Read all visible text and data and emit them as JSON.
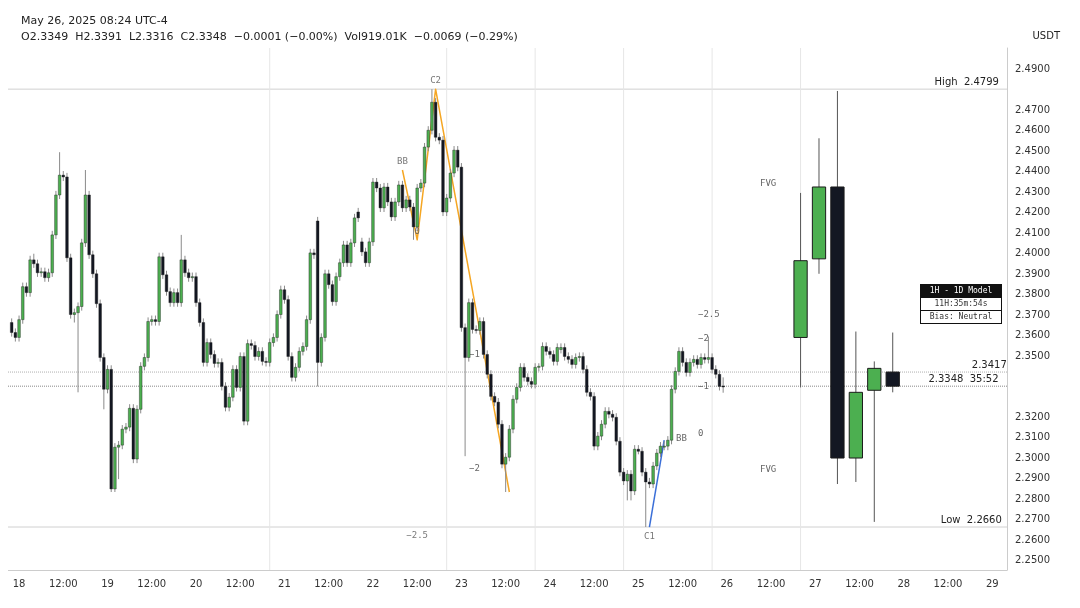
{
  "chart_data": {
    "type": "candlestick",
    "title": "May 26, 2025 08:24 UTC-4",
    "subtitle": "O2.3349  H2.3391  L2.3316  C2.3348  −0.0001 (−0.00%)  Vol919.01K  −0.0069 (−0.29%)",
    "ylabel": "USDT",
    "xlim": [
      "2025-05-17T21:00",
      "2025-05-29T04:00"
    ],
    "xticks": [
      {
        "value": "2025-05-18T00:00",
        "label": "18"
      },
      {
        "value": "2025-05-18T12:00",
        "label": "12:00"
      },
      {
        "value": "2025-05-19T00:00",
        "label": "19"
      },
      {
        "value": "2025-05-19T12:00",
        "label": "12:00"
      },
      {
        "value": "2025-05-20T00:00",
        "label": "20"
      },
      {
        "value": "2025-05-20T12:00",
        "label": "12:00"
      },
      {
        "value": "2025-05-21T00:00",
        "label": "21"
      },
      {
        "value": "2025-05-21T12:00",
        "label": "12:00"
      },
      {
        "value": "2025-05-22T00:00",
        "label": "22"
      },
      {
        "value": "2025-05-22T12:00",
        "label": "12:00"
      },
      {
        "value": "2025-05-23T00:00",
        "label": "23"
      },
      {
        "value": "2025-05-23T12:00",
        "label": "12:00"
      },
      {
        "value": "2025-05-24T00:00",
        "label": "24"
      },
      {
        "value": "2025-05-24T12:00",
        "label": "12:00"
      },
      {
        "value": "2025-05-25T00:00",
        "label": "25"
      },
      {
        "value": "2025-05-25T12:00",
        "label": "12:00"
      },
      {
        "value": "2025-05-26T00:00",
        "label": "26"
      },
      {
        "value": "2025-05-26T12:00",
        "label": "12:00"
      },
      {
        "value": "2025-05-27T00:00",
        "label": "27"
      },
      {
        "value": "2025-05-27T12:00",
        "label": "12:00"
      },
      {
        "value": "2025-05-28T00:00",
        "label": "28"
      },
      {
        "value": "2025-05-28T12:00",
        "label": "12:00"
      },
      {
        "value": "2025-05-29T00:00",
        "label": "29"
      }
    ],
    "ylim": [
      2.245,
      2.5
    ],
    "yticks": [
      {
        "value": 2.25,
        "label": "2.2500"
      },
      {
        "value": 2.26,
        "label": "2.2600"
      },
      {
        "value": 2.27,
        "label": "2.2700"
      },
      {
        "value": 2.28,
        "label": "2.2800"
      },
      {
        "value": 2.29,
        "label": "2.2900"
      },
      {
        "value": 2.3,
        "label": "2.3000"
      },
      {
        "value": 2.31,
        "label": "2.3100"
      },
      {
        "value": 2.32,
        "label": "2.3200"
      },
      {
        "value": 2.35,
        "label": "2.3500"
      },
      {
        "value": 2.36,
        "label": "2.3600"
      },
      {
        "value": 2.37,
        "label": "2.3700"
      },
      {
        "value": 2.38,
        "label": "2.3800"
      },
      {
        "value": 2.39,
        "label": "2.3900"
      },
      {
        "value": 2.4,
        "label": "2.4000"
      },
      {
        "value": 2.41,
        "label": "2.4100"
      },
      {
        "value": 2.42,
        "label": "2.4200"
      },
      {
        "value": 2.43,
        "label": "2.4300"
      },
      {
        "value": 2.44,
        "label": "2.4400"
      },
      {
        "value": 2.45,
        "label": "2.4500"
      },
      {
        "value": 2.46,
        "label": "2.4600"
      },
      {
        "value": 2.47,
        "label": "2.4700"
      },
      {
        "value": 2.49,
        "label": "2.4900"
      }
    ],
    "grid": false,
    "marker": "none",
    "series": [
      {
        "x": [
          "2025-05-17T22:00",
          "2025-05-17T23:00",
          "2025-05-18T00:00",
          "2025-05-18T01:00",
          "2025-05-18T02:00",
          "2025-05-18T03:00",
          "2025-05-18T04:00",
          "2025-05-18T05:00",
          "2025-05-18T06:00",
          "2025-05-18T07:00",
          "2025-05-18T08:00",
          "2025-05-18T09:00",
          "2025-05-18T10:00",
          "2025-05-18T11:00",
          "2025-05-18T12:00",
          "2025-05-18T13:00",
          "2025-05-18T14:00",
          "2025-05-18T15:00",
          "2025-05-18T16:00",
          "2025-05-18T17:00",
          "2025-05-18T18:00",
          "2025-05-18T19:00",
          "2025-05-18T20:00",
          "2025-05-18T21:00",
          "2025-05-18T22:00",
          "2025-05-18T23:00",
          "2025-05-19T00:00",
          "2025-05-19T01:00",
          "2025-05-19T02:00",
          "2025-05-19T03:00",
          "2025-05-19T04:00",
          "2025-05-19T05:00",
          "2025-05-19T06:00",
          "2025-05-19T07:00",
          "2025-05-19T08:00",
          "2025-05-19T09:00",
          "2025-05-19T10:00",
          "2025-05-19T11:00",
          "2025-05-19T12:00",
          "2025-05-19T13:00",
          "2025-05-19T14:00",
          "2025-05-19T15:00",
          "2025-05-19T16:00",
          "2025-05-19T17:00",
          "2025-05-19T18:00",
          "2025-05-19T19:00",
          "2025-05-19T20:00",
          "2025-05-19T21:00",
          "2025-05-19T22:00",
          "2025-05-19T23:00",
          "2025-05-20T00:00",
          "2025-05-20T01:00",
          "2025-05-20T02:00",
          "2025-05-20T03:00",
          "2025-05-20T04:00",
          "2025-05-20T05:00",
          "2025-05-20T06:00",
          "2025-05-20T07:00",
          "2025-05-20T08:00",
          "2025-05-20T09:00",
          "2025-05-20T10:00",
          "2025-05-20T11:00",
          "2025-05-20T12:00",
          "2025-05-20T13:00",
          "2025-05-20T14:00",
          "2025-05-20T15:00",
          "2025-05-20T16:00",
          "2025-05-20T17:00",
          "2025-05-20T18:00",
          "2025-05-20T19:00",
          "2025-05-20T20:00",
          "2025-05-20T21:00",
          "2025-05-20T22:00",
          "2025-05-20T23:00",
          "2025-05-21T00:00",
          "2025-05-21T01:00",
          "2025-05-21T02:00",
          "2025-05-21T03:00",
          "2025-05-21T04:00",
          "2025-05-21T05:00",
          "2025-05-21T06:00",
          "2025-05-21T07:00",
          "2025-05-21T08:00",
          "2025-05-21T09:00",
          "2025-05-21T10:00",
          "2025-05-21T11:00",
          "2025-05-21T12:00",
          "2025-05-21T13:00",
          "2025-05-21T14:00",
          "2025-05-21T15:00",
          "2025-05-21T16:00",
          "2025-05-21T17:00",
          "2025-05-21T18:00",
          "2025-05-21T19:00",
          "2025-05-21T20:00",
          "2025-05-21T21:00",
          "2025-05-21T22:00",
          "2025-05-21T23:00",
          "2025-05-22T00:00",
          "2025-05-22T01:00",
          "2025-05-22T02:00",
          "2025-05-22T03:00",
          "2025-05-22T04:00",
          "2025-05-22T05:00",
          "2025-05-22T06:00",
          "2025-05-22T07:00",
          "2025-05-22T08:00",
          "2025-05-22T09:00",
          "2025-05-22T10:00",
          "2025-05-22T11:00",
          "2025-05-22T12:00",
          "2025-05-22T13:00",
          "2025-05-22T14:00",
          "2025-05-22T15:00",
          "2025-05-22T16:00",
          "2025-05-22T17:00",
          "2025-05-22T18:00",
          "2025-05-22T19:00",
          "2025-05-22T20:00",
          "2025-05-22T21:00",
          "2025-05-22T22:00",
          "2025-05-22T23:00",
          "2025-05-23T00:00",
          "2025-05-23T01:00",
          "2025-05-23T02:00",
          "2025-05-23T03:00",
          "2025-05-23T04:00",
          "2025-05-23T05:00",
          "2025-05-23T06:00",
          "2025-05-23T07:00",
          "2025-05-23T08:00",
          "2025-05-23T09:00",
          "2025-05-23T10:00",
          "2025-05-23T11:00",
          "2025-05-23T12:00",
          "2025-05-23T13:00",
          "2025-05-23T14:00",
          "2025-05-23T15:00",
          "2025-05-23T16:00",
          "2025-05-23T17:00",
          "2025-05-23T18:00",
          "2025-05-23T19:00",
          "2025-05-23T20:00",
          "2025-05-23T21:00",
          "2025-05-23T22:00",
          "2025-05-23T23:00",
          "2025-05-24T00:00",
          "2025-05-24T01:00",
          "2025-05-24T02:00",
          "2025-05-24T03:00",
          "2025-05-24T04:00",
          "2025-05-24T05:00",
          "2025-05-24T06:00",
          "2025-05-24T07:00",
          "2025-05-24T08:00",
          "2025-05-24T09:00",
          "2025-05-24T10:00",
          "2025-05-24T11:00",
          "2025-05-24T12:00",
          "2025-05-24T13:00",
          "2025-05-24T14:00",
          "2025-05-24T15:00",
          "2025-05-24T16:00",
          "2025-05-24T17:00",
          "2025-05-24T18:00",
          "2025-05-24T19:00",
          "2025-05-24T20:00",
          "2025-05-24T21:00",
          "2025-05-24T22:00",
          "2025-05-24T23:00",
          "2025-05-25T00:00",
          "2025-05-25T01:00",
          "2025-05-25T02:00",
          "2025-05-25T03:00",
          "2025-05-25T04:00",
          "2025-05-25T05:00",
          "2025-05-25T06:00",
          "2025-05-25T07:00",
          "2025-05-25T08:00",
          "2025-05-25T09:00",
          "2025-05-25T10:00",
          "2025-05-25T11:00",
          "2025-05-25T12:00",
          "2025-05-25T13:00",
          "2025-05-25T14:00",
          "2025-05-25T15:00",
          "2025-05-25T16:00",
          "2025-05-25T17:00",
          "2025-05-25T18:00",
          "2025-05-25T19:00",
          "2025-05-25T20:00",
          "2025-05-25T21:00",
          "2025-05-25T22:00",
          "2025-05-25T23:00"
        ],
        "ohlc": [
          [
            2.3659,
            2.3679,
            2.359,
            2.361
          ],
          [
            2.361,
            2.363,
            2.3566,
            2.3586
          ],
          [
            2.3586,
            2.3693,
            2.3566,
            2.3673
          ],
          [
            2.3673,
            2.3854,
            2.3653,
            2.3834
          ],
          [
            2.3834,
            2.3854,
            2.3785,
            2.3805
          ],
          [
            2.3805,
            2.3985,
            2.3785,
            2.3965
          ],
          [
            2.3965,
            2.3995,
            2.3926,
            2.3946
          ],
          [
            2.3946,
            2.3966,
            2.3882,
            2.3902
          ],
          [
            2.3902,
            2.3927,
            2.3882,
            2.3907
          ],
          [
            2.3907,
            2.3927,
            2.3858,
            2.3878
          ],
          [
            2.3878,
            2.3922,
            2.3858,
            2.3902
          ],
          [
            2.3902,
            2.4107,
            2.3882,
            2.4087
          ],
          [
            2.4087,
            2.4302,
            2.4067,
            2.4282
          ],
          [
            2.4282,
            2.4491,
            2.4262,
            2.4379
          ],
          [
            2.4379,
            2.4399,
            2.435,
            2.437
          ],
          [
            2.437,
            2.439,
            2.3955,
            2.3975
          ],
          [
            2.3975,
            2.3995,
            2.3678,
            2.3698
          ],
          [
            2.3698,
            2.3727,
            2.3659,
            2.3707
          ],
          [
            2.3707,
            2.3757,
            2.3318,
            2.3737
          ],
          [
            2.3737,
            2.4068,
            2.3717,
            2.4048
          ],
          [
            2.4048,
            2.4404,
            2.4028,
            2.4282
          ],
          [
            2.4282,
            2.4302,
            2.397,
            2.399
          ],
          [
            2.399,
            2.401,
            2.3877,
            2.3897
          ],
          [
            2.3897,
            2.3917,
            2.3731,
            2.3751
          ],
          [
            2.3751,
            2.3771,
            2.3468,
            2.3488
          ],
          [
            2.3488,
            2.3508,
            2.3235,
            2.3333
          ],
          [
            2.3333,
            2.345,
            2.3313,
            2.343
          ],
          [
            2.343,
            2.345,
            2.2831,
            2.2846
          ],
          [
            2.2846,
            2.307,
            2.2831,
            2.305
          ],
          [
            2.305,
            2.308,
            2.2894,
            2.306
          ],
          [
            2.306,
            2.3158,
            2.304,
            2.3138
          ],
          [
            2.3138,
            2.3168,
            2.3118,
            2.3148
          ],
          [
            2.3148,
            2.326,
            2.3128,
            2.324
          ],
          [
            2.324,
            2.326,
            2.2972,
            2.2992
          ],
          [
            2.2992,
            2.3255,
            2.2972,
            2.3235
          ],
          [
            2.3235,
            2.3465,
            2.3215,
            2.3445
          ],
          [
            2.3445,
            2.3508,
            2.3425,
            2.3488
          ],
          [
            2.3488,
            2.3684,
            2.3468,
            2.3664
          ],
          [
            2.3664,
            2.3693,
            2.3644,
            2.3673
          ],
          [
            2.3673,
            2.3693,
            2.3644,
            2.3664
          ],
          [
            2.3664,
            2.4,
            2.3644,
            2.398
          ],
          [
            2.398,
            2.4,
            2.3872,
            2.3892
          ],
          [
            2.3892,
            2.3912,
            2.379,
            2.381
          ],
          [
            2.381,
            2.383,
            2.3736,
            2.3756
          ],
          [
            2.3756,
            2.3825,
            2.3736,
            2.3805
          ],
          [
            2.3805,
            2.3825,
            2.3736,
            2.3756
          ],
          [
            2.3756,
            2.4087,
            2.3736,
            2.3965
          ],
          [
            2.3965,
            2.3985,
            2.3882,
            2.3902
          ],
          [
            2.3902,
            2.3922,
            2.3858,
            2.3878
          ],
          [
            2.3878,
            2.3903,
            2.3858,
            2.3883
          ],
          [
            2.3883,
            2.3903,
            2.3736,
            2.3756
          ],
          [
            2.3756,
            2.3776,
            2.3639,
            2.3659
          ],
          [
            2.3659,
            2.3679,
            2.3444,
            2.3464
          ],
          [
            2.3464,
            2.3581,
            2.3444,
            2.3561
          ],
          [
            2.3561,
            2.3581,
            2.3483,
            2.3503
          ],
          [
            2.3503,
            2.3523,
            2.3439,
            2.3459
          ],
          [
            2.3459,
            2.3484,
            2.3439,
            2.3464
          ],
          [
            2.3464,
            2.3484,
            2.3327,
            2.3347
          ],
          [
            2.3347,
            2.3367,
            2.3225,
            2.3245
          ],
          [
            2.3245,
            2.3314,
            2.3225,
            2.3294
          ],
          [
            2.3294,
            2.345,
            2.3274,
            2.343
          ],
          [
            2.343,
            2.345,
            2.3322,
            2.3342
          ],
          [
            2.3342,
            2.3513,
            2.3322,
            2.3493
          ],
          [
            2.3493,
            2.3513,
            2.3157,
            2.3177
          ],
          [
            2.3177,
            2.3576,
            2.3157,
            2.3556
          ],
          [
            2.3556,
            2.3576,
            2.3527,
            2.3547
          ],
          [
            2.3547,
            2.3567,
            2.3473,
            2.3493
          ],
          [
            2.3493,
            2.3538,
            2.3473,
            2.3518
          ],
          [
            2.3518,
            2.3538,
            2.3449,
            2.3469
          ],
          [
            2.3469,
            2.3489,
            2.3444,
            2.3464
          ],
          [
            2.3464,
            2.3581,
            2.3444,
            2.3561
          ],
          [
            2.3561,
            2.3606,
            2.3541,
            2.3586
          ],
          [
            2.3586,
            2.3718,
            2.3566,
            2.3698
          ],
          [
            2.3698,
            2.3839,
            2.3678,
            2.3819
          ],
          [
            2.3819,
            2.3839,
            2.3751,
            2.3771
          ],
          [
            2.3771,
            2.3791,
            2.3473,
            2.3493
          ],
          [
            2.3493,
            2.3513,
            2.3371,
            2.3391
          ],
          [
            2.3391,
            2.346,
            2.3371,
            2.344
          ],
          [
            2.344,
            2.3538,
            2.342,
            2.3518
          ],
          [
            2.3518,
            2.3562,
            2.3498,
            2.3542
          ],
          [
            2.3542,
            2.3693,
            2.3522,
            2.3673
          ],
          [
            2.3673,
            2.4019,
            2.3653,
            2.3999
          ],
          [
            2.3999,
            2.4019,
            2.397,
            2.399
          ],
          [
            2.4155,
            2.4175,
            2.3347,
            2.3464
          ],
          [
            2.3464,
            2.3606,
            2.3444,
            2.3586
          ],
          [
            2.3586,
            2.3917,
            2.3566,
            2.3897
          ],
          [
            2.3897,
            2.3917,
            2.3824,
            2.3844
          ],
          [
            2.3844,
            2.3864,
            2.3741,
            2.3761
          ],
          [
            2.3761,
            2.3903,
            2.3741,
            2.3883
          ],
          [
            2.3883,
            2.3971,
            2.3863,
            2.3951
          ],
          [
            2.3951,
            2.4058,
            2.3931,
            2.4038
          ],
          [
            2.4038,
            2.4058,
            2.3931,
            2.3951
          ],
          [
            2.3951,
            2.4068,
            2.3931,
            2.4048
          ],
          [
            2.4048,
            2.419,
            2.4028,
            2.417
          ],
          [
            2.4199,
            2.4219,
            2.415,
            2.417
          ],
          [
            2.4053,
            2.4073,
            2.3984,
            2.4004
          ],
          [
            2.4004,
            2.4024,
            2.3931,
            2.3951
          ],
          [
            2.3951,
            2.4073,
            2.3931,
            2.4053
          ],
          [
            2.4053,
            2.4365,
            2.4033,
            2.4345
          ],
          [
            2.4345,
            2.4365,
            2.4296,
            2.4316
          ],
          [
            2.4316,
            2.4336,
            2.4199,
            2.4219
          ],
          [
            2.4219,
            2.4341,
            2.4199,
            2.4321
          ],
          [
            2.4321,
            2.4341,
            2.4228,
            2.4248
          ],
          [
            2.4248,
            2.4268,
            2.4155,
            2.4175
          ],
          [
            2.4175,
            2.4268,
            2.4155,
            2.4248
          ],
          [
            2.4248,
            2.4351,
            2.4228,
            2.4331
          ],
          [
            2.4331,
            2.4351,
            2.4199,
            2.4219
          ],
          [
            2.4219,
            2.4278,
            2.4199,
            2.4258
          ],
          [
            2.4258,
            2.4278,
            2.4203,
            2.4223
          ],
          [
            2.4223,
            2.4243,
            2.4063,
            2.4126
          ],
          [
            2.4126,
            2.4336,
            2.4106,
            2.4316
          ],
          [
            2.4316,
            2.436,
            2.4296,
            2.434
          ],
          [
            2.434,
            2.4536,
            2.432,
            2.4516
          ],
          [
            2.4516,
            2.4618,
            2.4496,
            2.4598
          ],
          [
            2.4598,
            2.4799,
            2.4578,
            2.4735
          ],
          [
            2.4735,
            2.4755,
            2.4544,
            2.4564
          ],
          [
            2.4564,
            2.4584,
            2.453,
            2.455
          ],
          [
            2.455,
            2.457,
            2.4179,
            2.4199
          ],
          [
            2.4199,
            2.4287,
            2.4179,
            2.4267
          ],
          [
            2.4267,
            2.4409,
            2.4247,
            2.4389
          ],
          [
            2.4389,
            2.4521,
            2.4369,
            2.4501
          ],
          [
            2.4501,
            2.4521,
            2.4398,
            2.4418
          ],
          [
            2.4418,
            2.4438,
            2.3614,
            2.3634
          ],
          [
            2.3634,
            2.3654,
            2.3006,
            2.3488
          ],
          [
            2.3488,
            2.3776,
            2.3468,
            2.3756
          ],
          [
            2.3756,
            2.3776,
            2.3605,
            2.3625
          ],
          [
            2.3625,
            2.3645,
            2.3605,
            2.362
          ],
          [
            2.362,
            2.3684,
            2.36,
            2.3664
          ],
          [
            2.3664,
            2.3684,
            2.3483,
            2.3503
          ],
          [
            2.3503,
            2.3523,
            2.3386,
            2.3406
          ],
          [
            2.3406,
            2.3426,
            2.3278,
            2.3298
          ],
          [
            2.3298,
            2.3318,
            2.325,
            2.327
          ],
          [
            2.327,
            2.329,
            2.3142,
            2.3162
          ],
          [
            2.3162,
            2.3182,
            2.2947,
            2.2967
          ],
          [
            2.2967,
            2.3021,
            2.2831,
            2.3001
          ],
          [
            2.3001,
            2.3158,
            2.2981,
            2.3138
          ],
          [
            2.3138,
            2.3304,
            2.3118,
            2.3284
          ],
          [
            2.3284,
            2.3362,
            2.3264,
            2.3342
          ],
          [
            2.3342,
            2.346,
            2.3322,
            2.344
          ],
          [
            2.344,
            2.346,
            2.3371,
            2.3391
          ],
          [
            2.3391,
            2.3411,
            2.3351,
            2.3371
          ],
          [
            2.3371,
            2.3391,
            2.3337,
            2.3357
          ],
          [
            2.3357,
            2.346,
            2.3337,
            2.344
          ],
          [
            2.344,
            2.346,
            2.342,
            2.3445
          ],
          [
            2.3445,
            2.3562,
            2.3425,
            2.3542
          ],
          [
            2.3542,
            2.3562,
            2.3498,
            2.3518
          ],
          [
            2.3518,
            2.3538,
            2.3483,
            2.3503
          ],
          [
            2.3503,
            2.3523,
            2.3449,
            2.3469
          ],
          [
            2.3469,
            2.3557,
            2.3449,
            2.3537
          ],
          [
            2.3527,
            2.3557,
            2.3508,
            2.3537
          ],
          [
            2.3537,
            2.3557,
            2.3473,
            2.3493
          ],
          [
            2.3493,
            2.3513,
            2.3459,
            2.3479
          ],
          [
            2.3479,
            2.3499,
            2.3434,
            2.3454
          ],
          [
            2.3454,
            2.3508,
            2.3434,
            2.3488
          ],
          [
            2.3488,
            2.3513,
            2.3468,
            2.3493
          ],
          [
            2.3493,
            2.3513,
            2.341,
            2.343
          ],
          [
            2.343,
            2.345,
            2.3298,
            2.3318
          ],
          [
            2.3318,
            2.3338,
            2.3278,
            2.3298
          ],
          [
            2.3298,
            2.3318,
            2.3035,
            2.3055
          ],
          [
            2.3055,
            2.3124,
            2.3035,
            2.3104
          ],
          [
            2.3104,
            2.3182,
            2.3084,
            2.3162
          ],
          [
            2.3162,
            2.3245,
            2.3142,
            2.3225
          ],
          [
            2.3225,
            2.3245,
            2.3191,
            2.3211
          ],
          [
            2.3211,
            2.3231,
            2.3176,
            2.3196
          ],
          [
            2.3196,
            2.3216,
            2.3059,
            2.3079
          ],
          [
            2.3079,
            2.3099,
            2.2908,
            2.2928
          ],
          [
            2.2928,
            2.2948,
            2.2865,
            2.2885
          ],
          [
            2.2885,
            2.2938,
            2.279,
            2.2918
          ],
          [
            2.2918,
            2.2938,
            2.279,
            2.2836
          ],
          [
            2.2836,
            2.306,
            2.2816,
            2.304
          ],
          [
            2.304,
            2.306,
            2.3015,
            2.303
          ],
          [
            2.303,
            2.305,
            2.2908,
            2.2928
          ],
          [
            2.2928,
            2.2948,
            2.266,
            2.288
          ],
          [
            2.288,
            2.29,
            2.285,
            2.287
          ],
          [
            2.287,
            2.2978,
            2.285,
            2.2958
          ],
          [
            2.2958,
            2.3041,
            2.2938,
            2.3021
          ],
          [
            2.3021,
            2.3075,
            2.3001,
            2.3055
          ],
          [
            2.3055,
            2.308,
            2.3035,
            2.3055
          ],
          [
            2.3055,
            2.3104,
            2.3035,
            2.3084
          ],
          [
            2.3084,
            2.3353,
            2.3064,
            2.3333
          ],
          [
            2.3333,
            2.344,
            2.3313,
            2.342
          ],
          [
            2.342,
            2.3538,
            2.34,
            2.3518
          ],
          [
            2.3518,
            2.3538,
            2.3444,
            2.3464
          ],
          [
            2.3464,
            2.3484,
            2.3395,
            2.3415
          ],
          [
            2.3415,
            2.3484,
            2.3395,
            2.3464
          ],
          [
            2.3464,
            2.3499,
            2.3444,
            2.3479
          ],
          [
            2.3479,
            2.3499,
            2.3434,
            2.3454
          ],
          [
            2.3454,
            2.3508,
            2.3434,
            2.3488
          ],
          [
            2.3488,
            2.3508,
            2.3459,
            2.3479
          ],
          [
            2.3479,
            2.3591,
            2.3459,
            2.3488
          ],
          [
            2.3488,
            2.3508,
            2.341,
            2.343
          ],
          [
            2.343,
            2.345,
            2.3386,
            2.3406
          ],
          [
            2.3406,
            2.3426,
            2.3327,
            2.3347
          ],
          [
            2.3349,
            2.3391,
            2.3316,
            2.3348
          ]
        ]
      },
      {
        "x": [
          "2025-05-26T20:00",
          "2025-05-27T01:00",
          "2025-05-27T06:00",
          "2025-05-27T11:00",
          "2025-05-27T16:00",
          "2025-05-27T21:00"
        ],
        "ohlc": [
          [
            2.3586,
            2.4292,
            2.3342,
            2.3961
          ],
          [
            2.397,
            2.4559,
            2.3897,
            2.4321
          ],
          [
            2.4321,
            2.479,
            2.287,
            2.2997
          ],
          [
            2.2997,
            2.3615,
            2.288,
            2.3318
          ],
          [
            2.3328,
            2.3469,
            2.2685,
            2.3435
          ],
          [
            2.3417,
            2.361,
            2.3318,
            2.3348
          ]
        ]
      },
      {
        "type": "line",
        "color": "#f5a623",
        "x": [
          "2025-05-22T08:00",
          "2025-05-22T12:00",
          "2025-05-22T17:00",
          "2025-05-23T13:00"
        ],
        "values": [
          2.4404,
          2.4063,
          2.4799,
          2.2831
        ]
      },
      {
        "type": "line",
        "color": "#3b6fd8",
        "x": [
          "2025-05-25T03:00",
          "2025-05-25T07:00"
        ],
        "values": [
          2.266,
          2.3084
        ]
      }
    ],
    "ref_lines": [
      {
        "axis": "y",
        "value": 2.4799,
        "label": "High  2.4799",
        "color": "#d0d0d0"
      },
      {
        "axis": "y",
        "value": 2.266,
        "label": "Low  2.2660",
        "color": "#d0d0d0"
      },
      {
        "axis": "y",
        "value": 2.3417,
        "label": "2.3417",
        "color": "#b0b0b0",
        "line_style": "dotted"
      },
      {
        "axis": "y",
        "value": 2.3348,
        "label": "2.3348  35:52",
        "color": "#888888",
        "line_style": "dotted"
      },
      {
        "axis": "x",
        "value": "2025-05-20T20:00",
        "label": null,
        "color": "#e6e6e6"
      },
      {
        "axis": "x",
        "value": "2025-05-22T20:00",
        "label": null,
        "color": "#e6e6e6"
      },
      {
        "axis": "x",
        "value": "2025-05-23T20:00",
        "label": null,
        "color": "#e6e6e6"
      },
      {
        "axis": "x",
        "value": "2025-05-24T20:00",
        "label": null,
        "color": "#e6e6e6"
      },
      {
        "axis": "x",
        "value": "2025-05-25T20:00",
        "label": null,
        "color": "#e6e6e6"
      },
      {
        "axis": "x",
        "value": "2025-05-26T20:00",
        "label": null,
        "color": "#e6e6e6"
      }
    ],
    "annotations": [
      {
        "text": "C2",
        "x": "2025-05-22T17:00",
        "y": 2.4799
      },
      {
        "text": "C1",
        "x": "2025-05-25T03:00",
        "y": 2.266
      },
      {
        "text": "BB",
        "x": "2025-05-22T08:00",
        "y": 2.4404
      },
      {
        "text": "0",
        "x": "2025-05-22T12:00",
        "y": 2.4063
      },
      {
        "text": "−2.5",
        "x": "2025-05-22T12:00",
        "y": 2.2666
      },
      "FVG",
      "FVG",
      "BB",
      "−2.5",
      "−2",
      "−1",
      "0",
      "−1",
      "−2",
      "1H - 1D Model",
      "11H:35m:54s",
      "Bias: Neutral"
    ]
  }
}
